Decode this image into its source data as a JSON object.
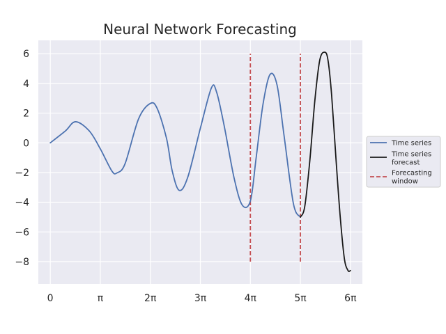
{
  "chart_data": {
    "type": "line",
    "title": "Neural Network Forecasting",
    "xlabel": "",
    "ylabel": "",
    "xlim": [
      -0.75,
      19.6
    ],
    "ylim": [
      -9.5,
      6.9
    ],
    "x_ticks": [
      {
        "value": 0,
        "label": "0"
      },
      {
        "value": 3.1416,
        "label": "π"
      },
      {
        "value": 6.2832,
        "label": "2π"
      },
      {
        "value": 9.4248,
        "label": "3π"
      },
      {
        "value": 12.5664,
        "label": "4π"
      },
      {
        "value": 15.708,
        "label": "5π"
      },
      {
        "value": 18.8496,
        "label": "6π"
      }
    ],
    "y_ticks": [
      {
        "value": 6,
        "label": "6"
      },
      {
        "value": 4,
        "label": "4"
      },
      {
        "value": 2,
        "label": "2"
      },
      {
        "value": 0,
        "label": "0"
      },
      {
        "value": -2,
        "label": "−2"
      },
      {
        "value": -4,
        "label": "−4"
      },
      {
        "value": -6,
        "label": "−6"
      },
      {
        "value": -8,
        "label": "−8"
      }
    ],
    "grid": true,
    "legend_placement": "center-right outside",
    "series": [
      {
        "name": "Time series",
        "color": "#4c72b0",
        "style": "solid",
        "x": [
          0.0,
          0.95,
          1.59,
          2.45,
          3.14,
          3.87,
          4.2,
          4.7,
          5.54,
          6.28,
          6.72,
          7.3,
          7.66,
          8.1,
          8.64,
          9.43,
          10.12,
          10.45,
          10.93,
          11.55,
          12.06,
          12.57,
          12.93,
          13.36,
          13.8,
          14.24,
          14.68,
          15.27,
          15.71
        ],
        "y": [
          0.0,
          0.8,
          1.42,
          0.8,
          -0.4,
          -1.9,
          -2.02,
          -1.4,
          1.6,
          2.65,
          2.3,
          0.3,
          -1.9,
          -3.2,
          -2.3,
          1.0,
          3.7,
          3.4,
          1.1,
          -2.4,
          -4.2,
          -3.9,
          -1.0,
          2.6,
          4.6,
          3.9,
          0.5,
          -4.1,
          -5.0
        ]
      },
      {
        "name": "Time series forecast",
        "color": "#1a1a1a",
        "style": "solid",
        "x": [
          15.71,
          15.98,
          16.3,
          16.62,
          16.93,
          17.25,
          17.45,
          17.67,
          17.95,
          18.21,
          18.47,
          18.7,
          18.85
        ],
        "y": [
          -5.0,
          -4.3,
          -1.2,
          2.9,
          5.6,
          6.1,
          5.5,
          3.2,
          -1.2,
          -5.0,
          -7.8,
          -8.6,
          -8.6
        ]
      },
      {
        "name": "Forecasting\nwindow",
        "color": "#c44e52",
        "style": "dashed",
        "lines": [
          {
            "x": 12.5664,
            "y": [
              -8,
              6
            ]
          },
          {
            "x": 15.708,
            "y": [
              -8,
              6
            ]
          }
        ]
      }
    ],
    "legend": [
      {
        "lines": [
          "Time series"
        ],
        "color": "#4c72b0",
        "style": "solid"
      },
      {
        "lines": [
          "Time series",
          "forecast"
        ],
        "color": "#1a1a1a",
        "style": "solid"
      },
      {
        "lines": [
          "Forecasting",
          "window"
        ],
        "color": "#c44e52",
        "style": "dashed"
      }
    ],
    "colors": {
      "axes_background": "#eaeaf2",
      "grid": "#ffffff",
      "text": "#262626"
    }
  }
}
